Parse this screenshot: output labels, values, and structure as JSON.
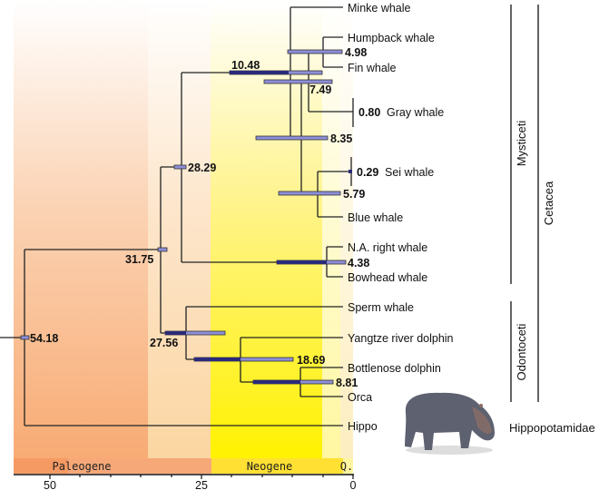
{
  "leaves": {
    "minke": "Minke whale",
    "humpback": "Humpback whale",
    "fin": "Fin whale",
    "gray": "Gray whale",
    "sei": "Sei whale",
    "blue": "Blue whale",
    "na_right": "N.A. right whale",
    "bowhead": "Bowhead whale",
    "sperm": "Sperm whale",
    "yangtze": "Yangtze river dolphin",
    "bottlenose": "Bottlenose dolphin",
    "orca": "Orca",
    "hippo": "Hippo"
  },
  "node_ages": {
    "root": "54.18",
    "n31": "31.75",
    "n28": "28.29",
    "n27": "27.56",
    "n18": "18.69",
    "n10": "10.48",
    "n8_35": "8.35",
    "n8_81": "8.81",
    "n7": "7.49",
    "n5": "5.79",
    "n4_98": "4.98",
    "n4_38": "4.38",
    "n0_80": "0.80",
    "n0_29": "0.29"
  },
  "clades": {
    "mysticeti": "Mysticeti",
    "odontoceti": "Odontoceti",
    "cetacea": "Cetacea",
    "hippopotamidae": "Hippopotamidae"
  },
  "timescale": {
    "periods": [
      "Paleogene",
      "Neogene",
      "Q."
    ],
    "ticks": [
      "50",
      "25",
      "0"
    ],
    "colors": {
      "paleogene": "#f6a26a",
      "oligocene": "#fcd9a6",
      "neogene": "#ffef00",
      "quaternary": "#fff7a0"
    }
  },
  "hippo_image": "hippo-photo"
}
